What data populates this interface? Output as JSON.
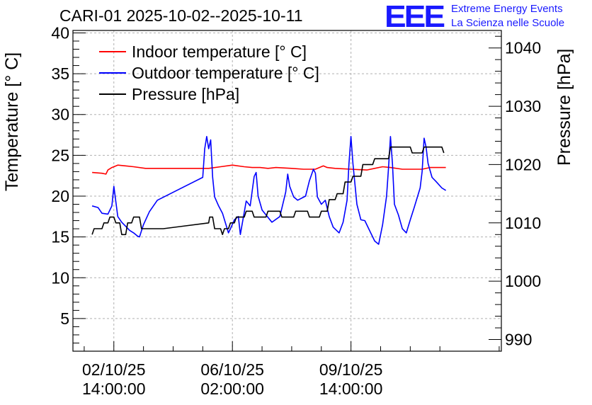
{
  "title": "CARI-01 2025-10-02--2025-10-11",
  "logo": {
    "mark": "EEE",
    "line1": "Extreme Energy Events",
    "line2": "La Scienza nelle Scuole",
    "color": "#1a1aff"
  },
  "chart_data": {
    "type": "line",
    "title": "CARI-01 2025-10-02--2025-10-11",
    "xlabel": "",
    "ylabel": "Temperature [° C]",
    "y2label": "Pressure [hPa]",
    "x_unit": "hours since 02/10/25 14:00:00",
    "xlim": [
      -20.7,
      196.1
    ],
    "ylim": [
      1,
      40.3
    ],
    "y2lim": [
      988,
      1043
    ],
    "grid": true,
    "legend_position": "top-left",
    "x_ticks": [
      {
        "x": 0,
        "line1": "02/10/25",
        "line2": "14:00:00"
      },
      {
        "x": 60,
        "line1": "06/10/25",
        "line2": "02:00:00"
      },
      {
        "x": 120,
        "line1": "09/10/25",
        "line2": "14:00:00"
      }
    ],
    "y_ticks": [
      5,
      10,
      15,
      20,
      25,
      30,
      35,
      40
    ],
    "y2_ticks": [
      990,
      1000,
      1010,
      1020,
      1030,
      1040
    ],
    "series": [
      {
        "name": "Indoor temperature [° C]",
        "axis": "left",
        "color": "#ff0000",
        "x": [
          -11,
          -6,
          -4,
          -3,
          -1,
          2,
          6,
          10,
          16,
          24,
          30,
          36,
          42,
          48,
          54,
          60,
          66,
          70,
          74,
          78,
          82,
          90,
          96,
          102,
          106,
          108,
          112,
          120,
          128,
          132,
          136,
          140,
          146,
          150,
          156,
          160,
          165,
          168
        ],
        "values": [
          22.9,
          22.8,
          22.7,
          23.2,
          23.5,
          23.8,
          23.7,
          23.6,
          23.4,
          23.4,
          23.4,
          23.4,
          23.4,
          23.4,
          23.6,
          23.8,
          23.6,
          23.5,
          23.5,
          23.4,
          23.5,
          23.4,
          23.3,
          23.3,
          23.7,
          23.5,
          23.4,
          23.3,
          23.2,
          23.4,
          23.6,
          23.5,
          23.3,
          23.3,
          23.3,
          23.5,
          23.5,
          23.5
        ]
      },
      {
        "name": "Outdoor temperature [° C]",
        "axis": "left",
        "color": "#0000ff",
        "x": [
          -11,
          -8,
          -6,
          -3,
          -1,
          0,
          2,
          4,
          6,
          8,
          10,
          12,
          13,
          15,
          18,
          22,
          45,
          46,
          47,
          48,
          49,
          50,
          51,
          53,
          55,
          58,
          59,
          61,
          63,
          64,
          67,
          69,
          71,
          72,
          73,
          75,
          77,
          80,
          84,
          87,
          88,
          89,
          91,
          93,
          97,
          99,
          101,
          102,
          103,
          105,
          107,
          109,
          111,
          114,
          116,
          118,
          119,
          120,
          121,
          123,
          125,
          127,
          130,
          132,
          134,
          136,
          138,
          139,
          140,
          141,
          142,
          144,
          146,
          148,
          150,
          152,
          155,
          156,
          157,
          158,
          159,
          161,
          163,
          166,
          168
        ],
        "values": [
          18.8,
          18.6,
          17.9,
          17.8,
          18.8,
          21.2,
          17.5,
          16.8,
          16.3,
          15.8,
          15.5,
          15.1,
          15.0,
          16.5,
          18.1,
          19.5,
          22.3,
          25.8,
          27.3,
          25.8,
          26.9,
          22.3,
          19.9,
          18.8,
          17.9,
          15.5,
          16.0,
          17.1,
          17.5,
          15.3,
          19.4,
          18.8,
          22.4,
          22.9,
          20.0,
          18.3,
          17.7,
          16.8,
          17.5,
          20.5,
          22.7,
          21.2,
          19.9,
          19.5,
          20.0,
          21.9,
          23.3,
          22.8,
          19.9,
          19.0,
          19.5,
          17.5,
          16.2,
          15.5,
          16.8,
          19.5,
          24.0,
          27.3,
          24.0,
          19.0,
          17.1,
          17.0,
          15.5,
          14.5,
          14.1,
          16.5,
          20.0,
          23.5,
          27.3,
          24.0,
          19.0,
          17.7,
          16.0,
          15.5,
          17.1,
          18.6,
          21.0,
          23.0,
          27.1,
          26.0,
          24.0,
          22.3,
          21.8,
          21.0,
          20.7
        ]
      },
      {
        "name": "Pressure [hPa]",
        "axis": "right",
        "color": "#000000",
        "x": [
          -11,
          -10,
          -6,
          -5,
          -3,
          -2,
          0,
          1,
          3,
          4,
          6,
          7,
          9,
          10,
          13,
          14,
          16,
          17,
          20,
          22,
          25,
          48,
          48.5,
          50,
          51,
          54,
          55,
          56,
          58,
          59,
          61,
          62,
          64,
          66,
          67,
          70,
          71,
          77,
          78,
          84,
          85,
          91,
          92,
          98,
          99,
          104,
          105,
          108,
          109,
          112,
          113,
          116,
          117,
          120,
          121,
          125,
          126,
          131,
          132,
          139,
          140,
          150,
          151,
          156,
          157,
          166,
          167
        ],
        "values": [
          1008,
          1009,
          1009,
          1010,
          1010,
          1011,
          1011,
          1010,
          1010,
          1008,
          1008,
          1010,
          1010,
          1011,
          1011,
          1009,
          1009,
          1009,
          1009,
          1009,
          1009,
          1010,
          1011,
          1011,
          1009,
          1009,
          1008,
          1009,
          1009,
          1010,
          1010,
          1011,
          1011,
          1011,
          1012,
          1012,
          1011,
          1011,
          1012,
          1012,
          1011,
          1011,
          1012,
          1012,
          1011,
          1011,
          1012,
          1012,
          1014,
          1014,
          1015,
          1015,
          1017,
          1017,
          1018,
          1018,
          1020,
          1020,
          1021,
          1021,
          1023,
          1023,
          1022,
          1022,
          1023,
          1023,
          1022
        ]
      }
    ]
  }
}
